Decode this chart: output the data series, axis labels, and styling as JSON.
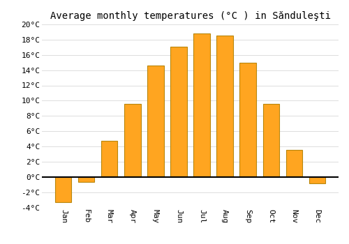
{
  "title": "Average monthly temperatures (°C ) in Sănduleşti",
  "months": [
    "Jan",
    "Feb",
    "Mar",
    "Apr",
    "May",
    "Jun",
    "Jul",
    "Aug",
    "Sep",
    "Oct",
    "Nov",
    "Dec"
  ],
  "temperatures": [
    -3.3,
    -0.7,
    4.7,
    9.6,
    14.6,
    17.1,
    18.8,
    18.5,
    15.0,
    9.6,
    3.5,
    -0.8
  ],
  "bar_color": "#FFA520",
  "bar_edge_color": "#B8860B",
  "background_color": "#FFFFFF",
  "grid_color": "#DDDDDD",
  "ylim": [
    -4,
    20
  ],
  "yticks": [
    -4,
    -2,
    0,
    2,
    4,
    6,
    8,
    10,
    12,
    14,
    16,
    18,
    20
  ],
  "title_fontsize": 10,
  "tick_fontsize": 8,
  "figsize": [
    5.0,
    3.5
  ],
  "dpi": 100
}
